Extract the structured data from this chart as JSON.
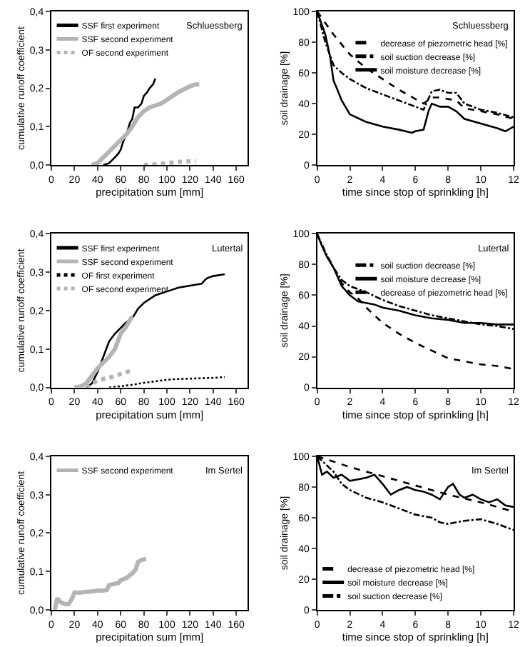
{
  "chart_data": [
    {
      "type": "line",
      "xlabel": "precipitation sum [mm]",
      "ylabel": "cumulative runoff coefficient",
      "annotations": [
        "Schluessberg"
      ],
      "xlim": [
        0,
        170
      ],
      "xticks": [
        0,
        20,
        40,
        60,
        80,
        100,
        120,
        140,
        160
      ],
      "ylim": [
        0,
        0.4
      ],
      "yticks": [
        {
          "value": 0,
          "label": "0,0"
        },
        {
          "value": 0.1,
          "label": "0,1"
        },
        {
          "value": 0.2,
          "label": "0,2"
        },
        {
          "value": 0.3,
          "label": "0,3"
        },
        {
          "value": 0.4,
          "label": "0,4"
        }
      ],
      "grid": false,
      "legend": "top left",
      "marker": "none",
      "series": [
        {
          "name": "SSF first experiment",
          "color": "#000000",
          "line_style": "solid",
          "x": [
            45,
            50,
            55,
            58,
            60,
            62,
            65,
            68,
            70,
            72,
            75,
            78,
            80,
            83,
            85,
            88,
            90
          ],
          "values": [
            0,
            0.005,
            0.02,
            0.03,
            0.04,
            0.06,
            0.08,
            0.11,
            0.12,
            0.15,
            0.15,
            0.16,
            0.18,
            0.19,
            0.2,
            0.21,
            0.225
          ]
        },
        {
          "name": "SSF second experiment",
          "color": "#b4b4b4",
          "line_style": "solid",
          "x": [
            35,
            40,
            45,
            50,
            55,
            60,
            65,
            70,
            75,
            80,
            85,
            90,
            95,
            100,
            110,
            120,
            125,
            128
          ],
          "values": [
            0,
            0.005,
            0.02,
            0.035,
            0.05,
            0.065,
            0.08,
            0.1,
            0.125,
            0.14,
            0.15,
            0.155,
            0.16,
            0.17,
            0.19,
            0.205,
            0.21,
            0.21
          ]
        },
        {
          "name": "OF second experiment",
          "color": "#b4b4b4",
          "line_style": "dotted",
          "x": [
            80,
            90,
            100,
            110,
            120,
            125
          ],
          "values": [
            0,
            0.002,
            0.005,
            0.008,
            0.01,
            0.01
          ]
        }
      ]
    },
    {
      "type": "line",
      "xlabel": "time since stop of sprinkling [h]",
      "ylabel": "soil drainage [%]",
      "annotations": [
        "Schluessberg"
      ],
      "xlim": [
        0,
        12
      ],
      "xticks": [
        0,
        2,
        4,
        6,
        8,
        10,
        12
      ],
      "ylim": [
        0,
        100
      ],
      "yticks": [
        0,
        20,
        40,
        60,
        80,
        100
      ],
      "grid": false,
      "legend": "top right",
      "marker": "none",
      "series": [
        {
          "name": "decrease of piezometric head [%]",
          "color": "#000000",
          "line_style": "dashed",
          "x": [
            0,
            1,
            2,
            3,
            4,
            5,
            6,
            6.5,
            7,
            7.5,
            8,
            8.5,
            9,
            10,
            11,
            12
          ],
          "values": [
            100,
            85,
            72,
            63,
            56,
            49,
            43,
            40,
            44,
            44,
            43,
            42,
            37,
            35,
            33,
            30
          ]
        },
        {
          "name": "soil suction decrease [%]",
          "color": "#000000",
          "line_style": "dashdot",
          "x": [
            0,
            0.5,
            1,
            1.5,
            2,
            3,
            4,
            5,
            6,
            6.5,
            7,
            7.5,
            8,
            8.5,
            9,
            10,
            11,
            12
          ],
          "values": [
            100,
            80,
            65,
            60,
            56,
            50,
            46,
            42,
            38,
            36,
            48,
            49,
            47,
            47,
            40,
            36,
            34,
            31
          ]
        },
        {
          "name": "soil moisture decrease [%]",
          "color": "#000000",
          "line_style": "solid",
          "x": [
            0,
            0.5,
            0.8,
            1,
            1.2,
            1.5,
            2,
            3,
            4,
            5,
            5.8,
            6,
            6.5,
            6.8,
            7,
            7.5,
            8,
            8.5,
            9,
            10,
            11,
            11.5,
            12
          ],
          "values": [
            100,
            85,
            70,
            55,
            50,
            42,
            33,
            28,
            25,
            23,
            21,
            22,
            23,
            35,
            40,
            38,
            38,
            35,
            30,
            27,
            24,
            22,
            25
          ]
        }
      ]
    },
    {
      "type": "line",
      "xlabel": "precipitation sum [mm]",
      "ylabel": "cumulative runoff coefficient",
      "annotations": [
        "Lutertal"
      ],
      "xlim": [
        0,
        170
      ],
      "xticks": [
        0,
        20,
        40,
        60,
        80,
        100,
        120,
        140,
        160
      ],
      "ylim": [
        0,
        0.4
      ],
      "yticks": [
        {
          "value": 0,
          "label": "0,0"
        },
        {
          "value": 0.1,
          "label": "0,1"
        },
        {
          "value": 0.2,
          "label": "0,2"
        },
        {
          "value": 0.3,
          "label": "0,3"
        },
        {
          "value": 0.4,
          "label": "0,4"
        }
      ],
      "grid": false,
      "legend": "top left",
      "marker": "none",
      "series": [
        {
          "name": "SSF first experiment",
          "color": "#000000",
          "line_style": "solid",
          "x": [
            30,
            35,
            40,
            45,
            50,
            55,
            60,
            65,
            70,
            75,
            80,
            90,
            100,
            110,
            120,
            130,
            133,
            135,
            140,
            150
          ],
          "values": [
            0,
            0.01,
            0.04,
            0.08,
            0.12,
            0.14,
            0.155,
            0.17,
            0.18,
            0.205,
            0.22,
            0.24,
            0.25,
            0.26,
            0.265,
            0.27,
            0.28,
            0.285,
            0.29,
            0.295
          ]
        },
        {
          "name": "SSF second experiment",
          "color": "#b4b4b4",
          "line_style": "solid",
          "x": [
            20,
            25,
            30,
            35,
            40,
            45,
            50,
            55,
            60,
            65,
            70
          ],
          "values": [
            0,
            0.002,
            0.01,
            0.03,
            0.05,
            0.065,
            0.08,
            0.1,
            0.14,
            0.16,
            0.185
          ]
        },
        {
          "name": "OF first experiment",
          "color": "#000000",
          "line_style": "dotted",
          "x": [
            50,
            60,
            70,
            80,
            90,
            100,
            110,
            120,
            130,
            140,
            150
          ],
          "values": [
            0,
            0.003,
            0.007,
            0.012,
            0.016,
            0.02,
            0.022,
            0.023,
            0.024,
            0.025,
            0.027
          ]
        },
        {
          "name": "OF second experiment",
          "color": "#b4b4b4",
          "line_style": "dotted",
          "x": [
            30,
            35,
            40,
            45,
            50,
            55,
            60,
            65,
            70
          ],
          "values": [
            0,
            0.01,
            0.018,
            0.022,
            0.025,
            0.03,
            0.035,
            0.04,
            0.045
          ]
        }
      ]
    },
    {
      "type": "line",
      "xlabel": "time since stop of sprinkling [h]",
      "ylabel": "soil drainage [%]",
      "annotations": [
        "Lutertal"
      ],
      "xlim": [
        0,
        12
      ],
      "xticks": [
        0,
        2,
        4,
        6,
        8,
        10,
        12
      ],
      "ylim": [
        0,
        100
      ],
      "yticks": [
        0,
        20,
        40,
        60,
        80,
        100
      ],
      "grid": false,
      "legend": "top right",
      "marker": "none",
      "series": [
        {
          "name": "soil suction decrease [%]",
          "color": "#000000",
          "line_style": "dashdot",
          "x": [
            0,
            0.5,
            1,
            1.5,
            2,
            3,
            4,
            5,
            6,
            7,
            8,
            9,
            10,
            11,
            12
          ],
          "values": [
            100,
            88,
            78,
            70,
            66,
            62,
            57,
            53,
            50,
            47,
            45,
            43,
            41,
            40,
            38
          ]
        },
        {
          "name": "soil moisture decrease [%]",
          "color": "#000000",
          "line_style": "solid",
          "x": [
            0,
            0.3,
            0.6,
            1,
            1.5,
            2,
            2.5,
            3,
            3.5,
            4,
            5,
            6,
            7,
            8,
            9,
            10,
            11,
            12
          ],
          "values": [
            100,
            92,
            85,
            78,
            66,
            60,
            56,
            55,
            54,
            52,
            50,
            47,
            45,
            44,
            42,
            42,
            41,
            41
          ]
        },
        {
          "name": "decrease of piezometric head [%]",
          "color": "#000000",
          "line_style": "dashed",
          "x": [
            0,
            0.5,
            1,
            1.5,
            2,
            2.5,
            3,
            4,
            5,
            6,
            7,
            8,
            9,
            10,
            11,
            12
          ],
          "values": [
            100,
            88,
            78,
            68,
            62,
            58,
            52,
            42,
            35,
            29,
            24,
            19,
            17,
            15,
            14,
            12
          ]
        }
      ]
    },
    {
      "type": "line",
      "xlabel": "precipitation sum [mm]",
      "ylabel": "cumulative runoff coefficient",
      "annotations": [
        "Im Sertel"
      ],
      "xlim": [
        0,
        170
      ],
      "xticks": [
        0,
        20,
        40,
        60,
        80,
        100,
        120,
        140,
        160
      ],
      "ylim": [
        0,
        0.4
      ],
      "yticks": [
        {
          "value": 0,
          "label": "0,0"
        },
        {
          "value": 0.1,
          "label": "0,1"
        },
        {
          "value": 0.2,
          "label": "0,2"
        },
        {
          "value": 0.3,
          "label": "0,3"
        },
        {
          "value": 0.4,
          "label": "0,4"
        }
      ],
      "grid": false,
      "legend": "top left",
      "marker": "none",
      "series": [
        {
          "name": "SSF second experiment",
          "color": "#b4b4b4",
          "line_style": "solid",
          "x": [
            3,
            5,
            8,
            12,
            15,
            18,
            20,
            25,
            30,
            35,
            40,
            45,
            48,
            50,
            55,
            58,
            60,
            65,
            70,
            73,
            75,
            78,
            82
          ],
          "values": [
            0,
            0.03,
            0.02,
            0.015,
            0.015,
            0.03,
            0.045,
            0.045,
            0.047,
            0.048,
            0.05,
            0.05,
            0.052,
            0.065,
            0.068,
            0.07,
            0.077,
            0.083,
            0.095,
            0.105,
            0.125,
            0.13,
            0.133
          ]
        }
      ]
    },
    {
      "type": "line",
      "xlabel": "time since stop of sprinkling [h]",
      "ylabel": "soil drainage [%]",
      "annotations": [
        "Im Sertel"
      ],
      "xlim": [
        0,
        12
      ],
      "xticks": [
        0,
        2,
        4,
        6,
        8,
        10,
        12
      ],
      "ylim": [
        0,
        100
      ],
      "yticks": [
        0,
        20,
        40,
        60,
        80,
        100
      ],
      "grid": false,
      "legend": "bottom left",
      "marker": "none",
      "series": [
        {
          "name": "decrease of piezometric head [%]",
          "color": "#000000",
          "line_style": "dashed",
          "x": [
            0,
            2,
            4,
            6,
            8,
            10,
            12
          ],
          "values": [
            100,
            93,
            87,
            81,
            75,
            70,
            64
          ]
        },
        {
          "name": "soil moisture decrease [%]",
          "color": "#000000",
          "line_style": "solid",
          "x": [
            0,
            0.3,
            0.6,
            1,
            1.5,
            2,
            2.5,
            3,
            3.5,
            4,
            4.5,
            5,
            5.5,
            6,
            6.5,
            7,
            7.5,
            8,
            8.3,
            8.7,
            9,
            9.5,
            10,
            10.5,
            11,
            11.5,
            12
          ],
          "values": [
            100,
            88,
            90,
            86,
            88,
            84,
            85,
            86,
            88,
            82,
            75,
            78,
            80,
            78,
            77,
            75,
            72,
            80,
            82,
            75,
            73,
            75,
            72,
            70,
            72,
            68,
            67
          ]
        },
        {
          "name": "soil suction decrease [%]",
          "color": "#000000",
          "line_style": "dashdot",
          "x": [
            0,
            0.5,
            1,
            1.5,
            2,
            3,
            4,
            5,
            6,
            7,
            7.5,
            8,
            9,
            10,
            11,
            12
          ],
          "values": [
            100,
            95,
            90,
            82,
            78,
            73,
            70,
            66,
            62,
            60,
            57,
            56,
            58,
            59,
            56,
            52
          ]
        }
      ]
    }
  ]
}
